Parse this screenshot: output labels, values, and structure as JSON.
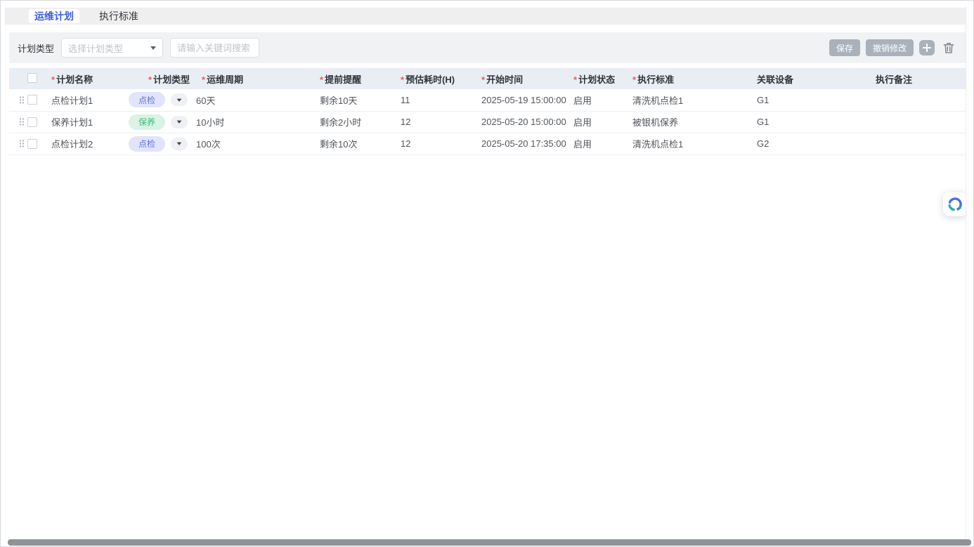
{
  "tabs": [
    {
      "label": "运维计划",
      "active": true
    },
    {
      "label": "执行标准",
      "active": false
    }
  ],
  "toolbar": {
    "filter_label": "计划类型",
    "select_placeholder": "选择计划类型",
    "search_placeholder": "请输入关键词搜索",
    "save_label": "保存",
    "undo_label": "撤销修改"
  },
  "table": {
    "columns": [
      {
        "label": "计划名称",
        "required": true
      },
      {
        "label": "计划类型",
        "required": true
      },
      {
        "label": "运维周期",
        "required": true
      },
      {
        "label": "提前提醒",
        "required": true
      },
      {
        "label": "预估耗时(H)",
        "required": true
      },
      {
        "label": "开始时间",
        "required": true
      },
      {
        "label": "计划状态",
        "required": true
      },
      {
        "label": "执行标准",
        "required": true
      },
      {
        "label": "关联设备",
        "required": false
      },
      {
        "label": "执行备注",
        "required": false
      }
    ],
    "rows": [
      {
        "plan_name": "点检计划1",
        "plan_type": "点检",
        "plan_type_style": "blue",
        "cycle": "60天",
        "reminder": "剩余10天",
        "estimated_hours": "11",
        "start_time": "2025-05-19 15:00:00",
        "status": "启用",
        "standard": "清洗机点检1",
        "device": "G1",
        "remark": ""
      },
      {
        "plan_name": "保养计划1",
        "plan_type": "保养",
        "plan_type_style": "green",
        "cycle": "10小时",
        "reminder": "剩余2小时",
        "estimated_hours": "12",
        "start_time": "2025-05-20 15:00:00",
        "status": "启用",
        "standard": "被银机保养",
        "device": "G1",
        "remark": ""
      },
      {
        "plan_name": "点检计划2",
        "plan_type": "点检",
        "plan_type_style": "blue",
        "cycle": "100次",
        "reminder": "剩余10次",
        "estimated_hours": "12",
        "start_time": "2025-05-20 17:35:00",
        "status": "启用",
        "standard": "清洗机点检1",
        "device": "G2",
        "remark": ""
      }
    ]
  },
  "colors": {
    "accent_blue": "#3b5fd9",
    "badge_blue_bg": "#e1e4fb",
    "badge_blue_text": "#6272de",
    "badge_green_bg": "#d9f3e4",
    "badge_green_text": "#40ba77",
    "button_gray": "#a9b1bb",
    "header_bg": "#e9edf4",
    "required_red": "#f25a5a"
  }
}
